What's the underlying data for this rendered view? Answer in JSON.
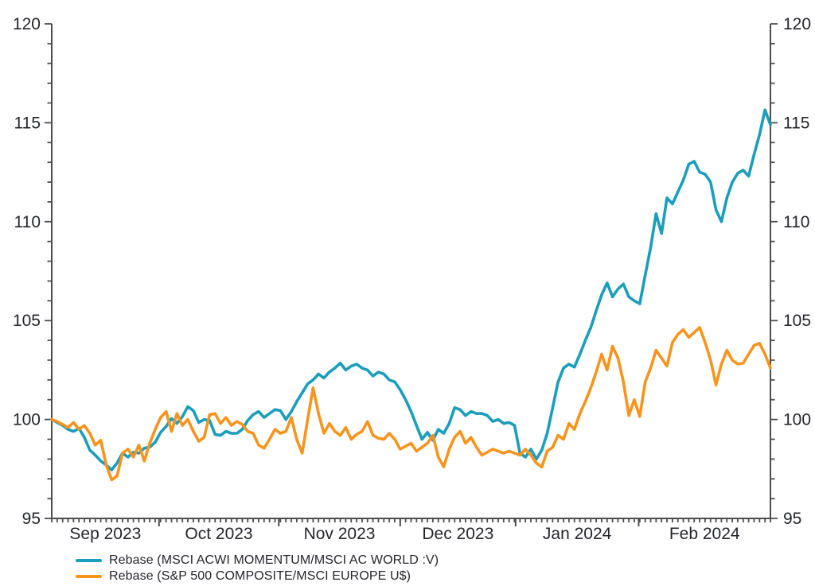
{
  "chart_data": {
    "type": "line",
    "title": "",
    "grid": false,
    "legend_position": "bottom-left",
    "background": "#ffffff",
    "axis_color": "#4d4d4d",
    "text_color": "#24262c",
    "y_axis": {
      "min": 95,
      "max": 120,
      "major_step": 5,
      "minor_step": 1,
      "tick_labels": [
        "95",
        "100",
        "105",
        "110",
        "115",
        "120"
      ],
      "sides": [
        "left",
        "right"
      ]
    },
    "x_axis": {
      "labels": [
        "Sep 2023",
        "Oct 2023",
        "Nov 2023",
        "Dec 2023",
        "Jan 2024",
        "Feb 2024"
      ],
      "label_centers_day": [
        9.85,
        30.7,
        52.85,
        74.6,
        96.5,
        119.9
      ],
      "month_boundaries_day": [
        19.7,
        41.7,
        64.0,
        85.2,
        107.8
      ],
      "days_total": 132
    },
    "series": [
      {
        "name": "Rebase (MSCI ACWI MOMENTUM/MSCI AC WORLD :V)",
        "color": "#1B9DBC",
        "values": [
          100,
          99.85,
          99.7,
          99.5,
          99.4,
          99.55,
          99.1,
          98.45,
          98.2,
          97.9,
          97.7,
          97.45,
          97.8,
          98.3,
          98.1,
          98.35,
          98.3,
          98.55,
          98.6,
          98.85,
          99.35,
          99.65,
          100.05,
          99.8,
          100.15,
          100.65,
          100.45,
          99.85,
          100.0,
          99.95,
          99.25,
          99.2,
          99.4,
          99.3,
          99.3,
          99.5,
          99.95,
          100.25,
          100.4,
          100.1,
          100.3,
          100.5,
          100.45,
          100.0,
          100.4,
          100.9,
          101.35,
          101.8,
          102.0,
          102.3,
          102.1,
          102.4,
          102.6,
          102.85,
          102.5,
          102.7,
          102.8,
          102.6,
          102.5,
          102.2,
          102.4,
          102.3,
          102.0,
          101.9,
          101.5,
          101.0,
          100.4,
          99.7,
          99.0,
          99.35,
          98.95,
          99.5,
          99.3,
          99.8,
          100.6,
          100.5,
          100.2,
          100.4,
          100.3,
          100.3,
          100.2,
          99.9,
          100.0,
          99.8,
          99.85,
          99.7,
          98.3,
          98.1,
          98.5,
          98.0,
          98.45,
          99.3,
          100.6,
          101.9,
          102.6,
          102.8,
          102.65,
          103.3,
          104.0,
          104.65,
          105.5,
          106.3,
          106.9,
          106.2,
          106.6,
          106.85,
          106.2,
          106.0,
          105.85,
          107.3,
          108.7,
          110.4,
          109.4,
          111.2,
          110.9,
          111.5,
          112.1,
          112.9,
          113.05,
          112.5,
          112.4,
          112.0,
          110.6,
          110.0,
          111.2,
          112.0,
          112.45,
          112.6,
          112.3,
          113.4,
          114.4,
          115.65,
          114.9
        ]
      },
      {
        "name": "Rebase (S&P 500 COMPOSITE/MSCI EUROPE U$)",
        "color": "#F7941E",
        "values": [
          100,
          99.9,
          99.75,
          99.6,
          99.85,
          99.5,
          99.7,
          99.3,
          98.7,
          98.95,
          97.7,
          96.95,
          97.15,
          98.3,
          98.5,
          98.1,
          98.7,
          97.9,
          98.8,
          99.5,
          100.1,
          100.4,
          99.4,
          100.3,
          99.7,
          100.0,
          99.4,
          98.9,
          99.1,
          100.25,
          100.3,
          99.8,
          100.1,
          99.7,
          99.9,
          99.75,
          99.4,
          99.3,
          98.7,
          98.55,
          99.0,
          99.5,
          99.3,
          99.4,
          100.1,
          99.0,
          98.3,
          100.0,
          101.6,
          100.3,
          99.3,
          99.8,
          99.4,
          99.2,
          99.6,
          99.0,
          99.25,
          99.4,
          99.9,
          99.2,
          99.05,
          99.0,
          99.3,
          99.0,
          98.5,
          98.65,
          98.8,
          98.4,
          98.6,
          98.8,
          99.2,
          98.1,
          97.6,
          98.5,
          99.1,
          99.4,
          98.8,
          99.1,
          98.6,
          98.2,
          98.35,
          98.5,
          98.4,
          98.3,
          98.4,
          98.3,
          98.2,
          98.5,
          98.2,
          97.8,
          97.6,
          98.4,
          98.6,
          99.2,
          99.0,
          99.8,
          99.5,
          100.3,
          100.9,
          101.6,
          102.4,
          103.3,
          102.5,
          103.7,
          103.1,
          101.9,
          100.2,
          101.0,
          100.15,
          101.9,
          102.6,
          103.5,
          103.1,
          102.7,
          103.9,
          104.3,
          104.55,
          104.15,
          104.4,
          104.65,
          103.9,
          103.0,
          101.75,
          102.8,
          103.5,
          103.0,
          102.8,
          102.85,
          103.3,
          103.75,
          103.85,
          103.3,
          102.6
        ]
      }
    ]
  },
  "legend": {
    "items": [
      {
        "label": "Rebase (MSCI ACWI MOMENTUM/MSCI AC WORLD :V)"
      },
      {
        "label": "Rebase (S&P 500 COMPOSITE/MSCI EUROPE U$)"
      }
    ]
  }
}
